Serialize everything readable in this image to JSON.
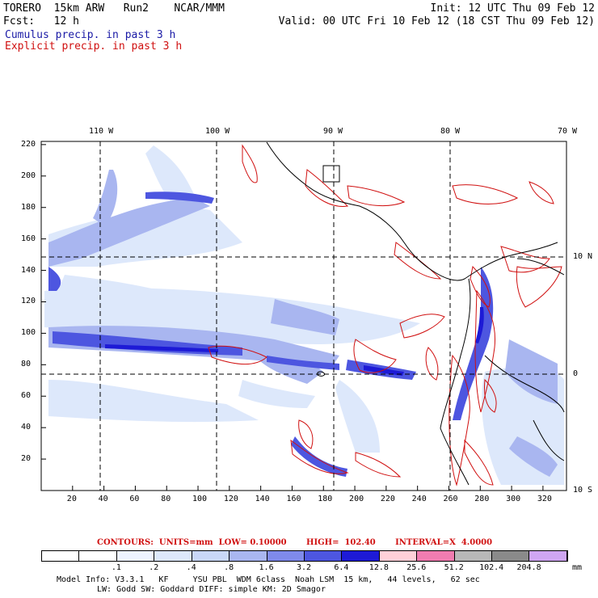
{
  "header": {
    "model": "TORERO  15km ARW   Run2    NCAR/MMM",
    "init": "Init: 12 UTC Thu 09 Feb 12",
    "fcst": "Fcst:   12 h",
    "valid": "Valid: 00 UTC Fri 10 Feb 12 (18 CST Thu 09 Feb 12)",
    "cumulus": "Cumulus precip. in past 3 h",
    "explicit": "Explicit precip. in past 3 h"
  },
  "axes": {
    "lon_labels": [
      "110 W",
      "100 W",
      "90 W",
      "80 W",
      "70 W"
    ],
    "lat_labels": [
      "10 N",
      "0",
      "10 S"
    ],
    "x_ticks": [
      "20",
      "40",
      "60",
      "80",
      "100",
      "120",
      "140",
      "160",
      "180",
      "200",
      "220",
      "240",
      "260",
      "280",
      "300",
      "320"
    ],
    "y_ticks": [
      "20",
      "40",
      "60",
      "80",
      "100",
      "120",
      "140",
      "160",
      "180",
      "200",
      "220"
    ]
  },
  "contours_line": "CONTOURS:  UNITS=mm  LOW= 0.10000       HIGH=  102.40       INTERVAL=X  4.0000",
  "colorbar": {
    "labels": [
      ".1",
      ".2",
      ".4",
      ".8",
      "1.6",
      "3.2",
      "6.4",
      "12.8",
      "25.6",
      "51.2",
      "102.4",
      "204.8"
    ],
    "unit": "mm",
    "colors": [
      "#ffffff",
      "#ffffff",
      "#eef3ff",
      "#dde8fb",
      "#c9d7f7",
      "#a9b6f0",
      "#7f8aea",
      "#4d56e0",
      "#1d1ad6",
      "#ffd0d8",
      "#f07cb0",
      "#b8b8b8",
      "#8a8a8a",
      "#cfa6f2"
    ]
  },
  "footer": {
    "line1": "Model Info: V3.3.1   KF     YSU PBL  WDM 6class  Noah LSM  15 km,   44 levels,   62 sec",
    "line2": "LW: Godd SW: Goddard DIFF: simple KM: 2D Smagor"
  }
}
